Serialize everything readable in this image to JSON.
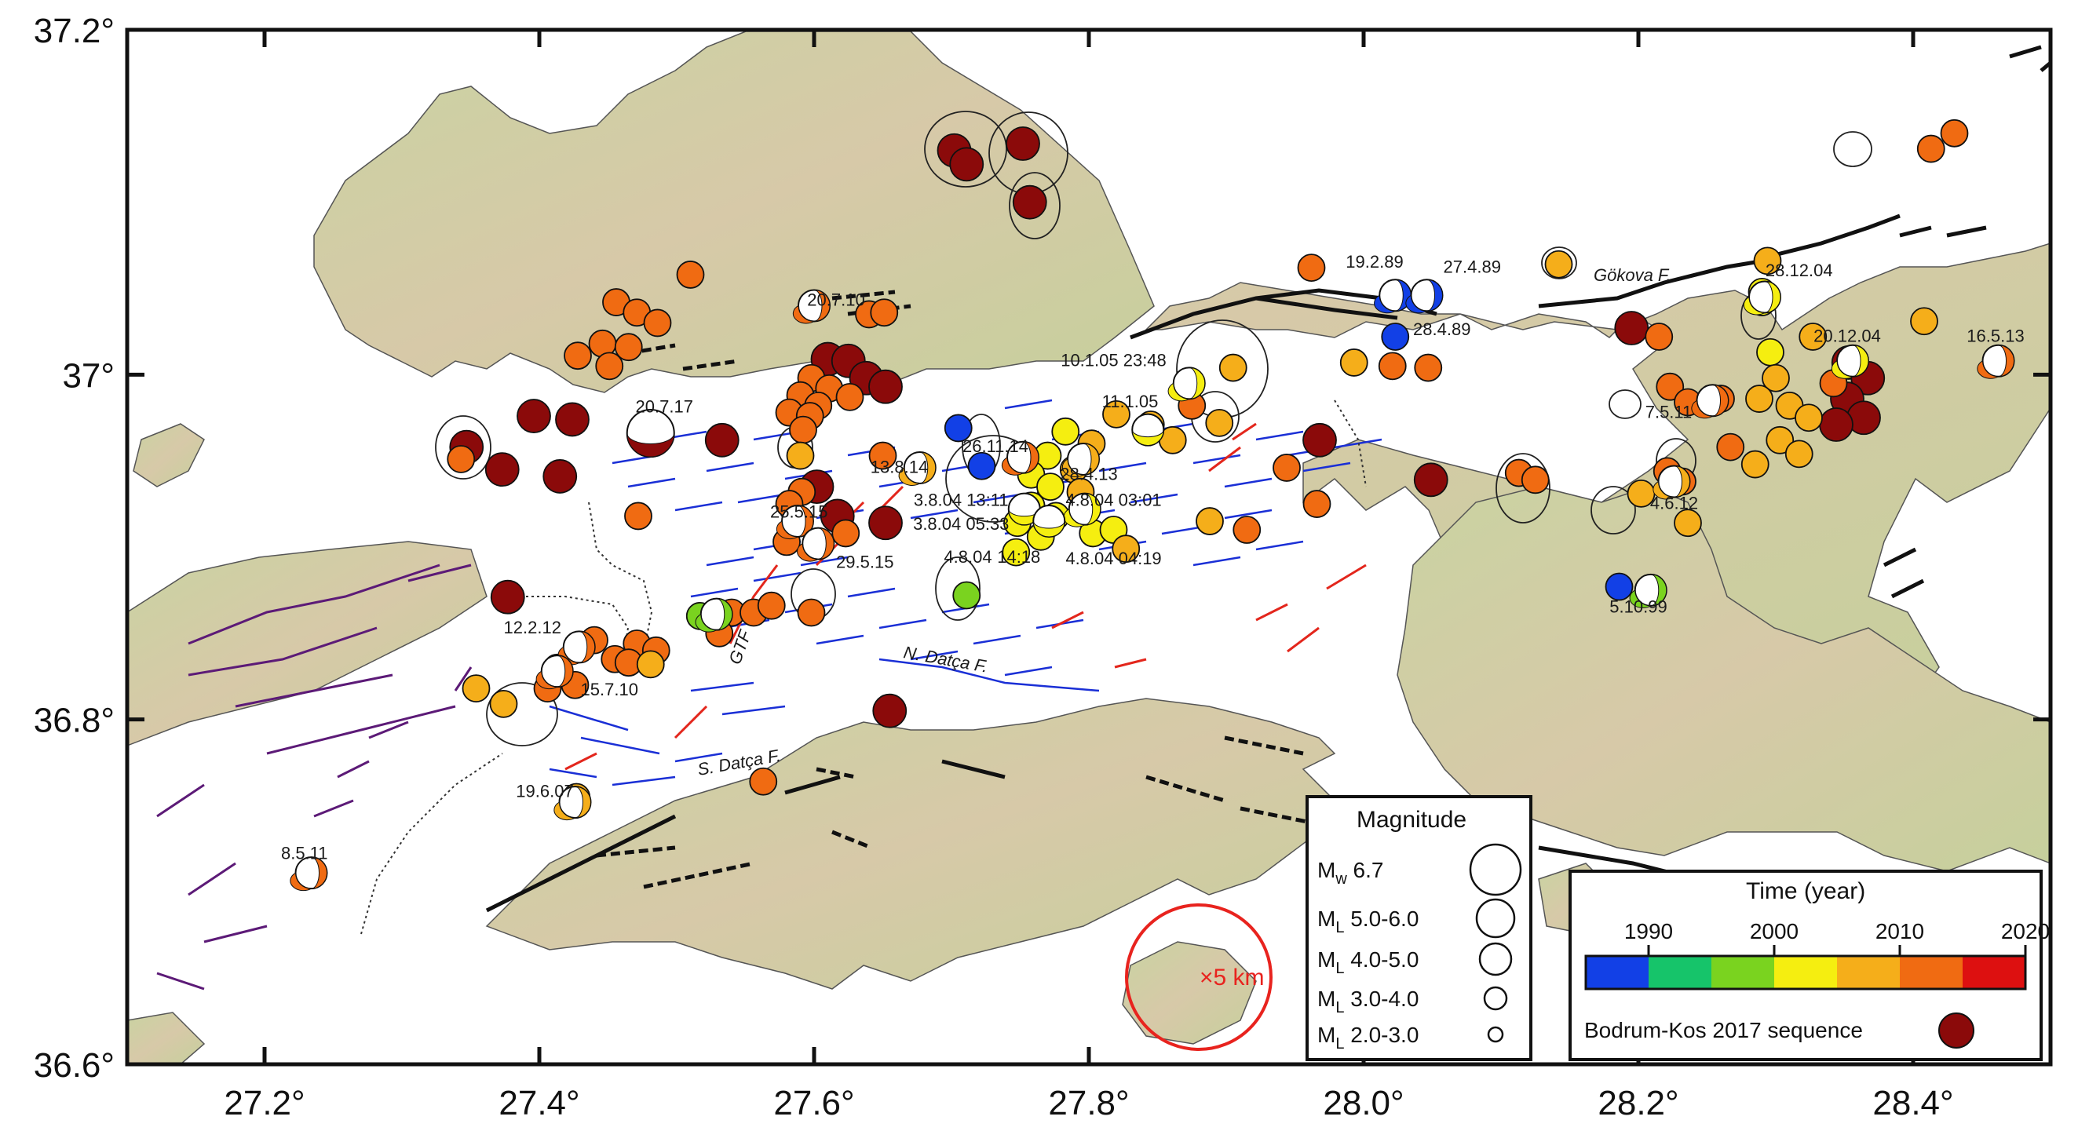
{
  "axes": {
    "x_ticks": [
      "27.2°",
      "27.4°",
      "27.6°",
      "27.8°",
      "28.0°",
      "28.2°",
      "28.4°"
    ],
    "x_values": [
      27.2,
      27.4,
      27.6,
      27.8,
      28.0,
      28.2,
      28.4
    ],
    "y_ticks": [
      "37.2°",
      "37°",
      "36.8°",
      "36.6°"
    ],
    "y_values": [
      37.2,
      37.0,
      36.8,
      36.6
    ],
    "lon_range": [
      27.1,
      28.5
    ],
    "lat_range": [
      36.6,
      37.2
    ]
  },
  "fault_labels": {
    "gokova": "Gökova F.",
    "n_datca": "N. Datça F.",
    "s_datca": "S. Datça F.",
    "gtf": "GTF"
  },
  "event_labels": [
    {
      "text": "20.7.10",
      "lon": 27.616,
      "lat": 37.04
    },
    {
      "text": "19.2.89",
      "lon": 28.008,
      "lat": 37.062
    },
    {
      "text": "27.4.89",
      "lon": 28.079,
      "lat": 37.059
    },
    {
      "text": "28.4.89",
      "lon": 28.057,
      "lat": 37.023
    },
    {
      "text": "28.12.04",
      "lon": 28.317,
      "lat": 37.057
    },
    {
      "text": "20.12.04",
      "lon": 28.352,
      "lat": 37.019
    },
    {
      "text": "16.5.13",
      "lon": 28.46,
      "lat": 37.019
    },
    {
      "text": "10.1.05 23:48",
      "lon": 27.818,
      "lat": 37.005
    },
    {
      "text": "11.1.05",
      "lon": 27.83,
      "lat": 36.981
    },
    {
      "text": "20.7.17",
      "lon": 27.491,
      "lat": 36.978
    },
    {
      "text": "26.11.14",
      "lon": 27.732,
      "lat": 36.955
    },
    {
      "text": "13.8.14",
      "lon": 27.662,
      "lat": 36.943
    },
    {
      "text": "28.4.13",
      "lon": 27.8,
      "lat": 36.939
    },
    {
      "text": "7.5.11",
      "lon": 28.222,
      "lat": 36.975
    },
    {
      "text": "3.8.04 13:11",
      "lon": 27.707,
      "lat": 36.924
    },
    {
      "text": "4.8.04 03:01",
      "lon": 27.818,
      "lat": 36.924
    },
    {
      "text": "25.5.15",
      "lon": 27.589,
      "lat": 36.917
    },
    {
      "text": "3.8.04 05:33",
      "lon": 27.707,
      "lat": 36.91
    },
    {
      "text": "4.6.12",
      "lon": 28.226,
      "lat": 36.922
    },
    {
      "text": "29.5.15",
      "lon": 27.637,
      "lat": 36.888
    },
    {
      "text": "4.8.04",
      "lon": 27.712,
      "lat": 36.891
    },
    {
      "text": "14:18",
      "lon": 27.749,
      "lat": 36.891
    },
    {
      "text": "4.8.04 04:19",
      "lon": 27.818,
      "lat": 36.89
    },
    {
      "text": "5.10.99",
      "lon": 28.2,
      "lat": 36.862
    },
    {
      "text": "12.2.12",
      "lon": 27.395,
      "lat": 36.85
    },
    {
      "text": "15.7.10",
      "lon": 27.451,
      "lat": 36.814
    },
    {
      "text": "19.6.07",
      "lon": 27.404,
      "lat": 36.755
    },
    {
      "text": "8.5.11",
      "lon": 27.229,
      "lat": 36.719
    }
  ],
  "scale_marker": {
    "label": "×5 km",
    "color": "#e8231e"
  },
  "magnitude_legend": {
    "title": "Magnitude",
    "items": [
      {
        "prefix": "M",
        "sub": "w",
        "label": "6.7"
      },
      {
        "prefix": "M",
        "sub": "L",
        "label": "5.0-6.0"
      },
      {
        "prefix": "M",
        "sub": "L",
        "label": "4.0-5.0"
      },
      {
        "prefix": "M",
        "sub": "L",
        "label": "3.0-4.0"
      },
      {
        "prefix": "M",
        "sub": "L",
        "label": "2.0-3.0"
      }
    ]
  },
  "time_legend": {
    "title": "Time (year)",
    "ticks": [
      "1990",
      "2000",
      "2010",
      "2020"
    ],
    "colors": [
      "#1240e6",
      "#16c46a",
      "#7ad31f",
      "#f5ee10",
      "#f5ae1a",
      "#f06b12",
      "#dd1010"
    ],
    "sequence_label": "Bodrum-Kos 2017 sequence",
    "sequence_color": "#8b0a0a"
  },
  "colors": {
    "land": "#cfd6a4",
    "sea": "#ffffff",
    "fault_onshore": "#111111",
    "fault_offshore_blue": "#1a2fd6",
    "fault_offshore_red": "#e3261c",
    "fault_purple": "#5c1a77"
  },
  "events": [
    {
      "lon": 27.702,
      "lat": 37.13,
      "c": 6
    },
    {
      "lon": 27.711,
      "lat": 37.122,
      "c": 6
    },
    {
      "lon": 27.752,
      "lat": 37.134,
      "c": 6
    },
    {
      "lon": 27.757,
      "lat": 37.1,
      "c": 6
    },
    {
      "lon": 28.43,
      "lat": 37.14,
      "c": 5
    },
    {
      "lon": 28.413,
      "lat": 37.131,
      "c": 5
    },
    {
      "lon": 27.51,
      "lat": 37.058,
      "c": 5
    },
    {
      "lon": 27.962,
      "lat": 37.062,
      "c": 5
    },
    {
      "lon": 28.142,
      "lat": 37.064,
      "c": 4
    },
    {
      "lon": 28.294,
      "lat": 37.066,
      "c": 4
    },
    {
      "lon": 28.29,
      "lat": 37.048,
      "c": 3
    },
    {
      "lon": 28.29,
      "lat": 37.042,
      "c": 3
    },
    {
      "lon": 27.456,
      "lat": 37.042,
      "c": 5
    },
    {
      "lon": 27.471,
      "lat": 37.036,
      "c": 5
    },
    {
      "lon": 27.486,
      "lat": 37.03,
      "c": 5
    },
    {
      "lon": 27.446,
      "lat": 37.018,
      "c": 5
    },
    {
      "lon": 27.465,
      "lat": 37.016,
      "c": 5
    },
    {
      "lon": 27.428,
      "lat": 37.011,
      "c": 5
    },
    {
      "lon": 27.451,
      "lat": 37.005,
      "c": 5
    },
    {
      "lon": 27.64,
      "lat": 37.035,
      "c": 5
    },
    {
      "lon": 27.651,
      "lat": 37.036,
      "c": 5
    },
    {
      "lon": 28.195,
      "lat": 37.027,
      "c": 6
    },
    {
      "lon": 28.215,
      "lat": 37.022,
      "c": 5
    },
    {
      "lon": 28.408,
      "lat": 37.031,
      "c": 4
    },
    {
      "lon": 27.61,
      "lat": 37.009,
      "c": 6
    },
    {
      "lon": 27.625,
      "lat": 37.008,
      "c": 6
    },
    {
      "lon": 27.638,
      "lat": 36.998,
      "c": 6
    },
    {
      "lon": 27.652,
      "lat": 36.993,
      "c": 6
    },
    {
      "lon": 27.598,
      "lat": 36.998,
      "c": 5
    },
    {
      "lon": 27.611,
      "lat": 36.992,
      "c": 5
    },
    {
      "lon": 27.626,
      "lat": 36.987,
      "c": 5
    },
    {
      "lon": 27.59,
      "lat": 36.988,
      "c": 5
    },
    {
      "lon": 27.603,
      "lat": 36.982,
      "c": 5
    },
    {
      "lon": 27.582,
      "lat": 36.978,
      "c": 5
    },
    {
      "lon": 27.597,
      "lat": 36.976,
      "c": 5
    },
    {
      "lon": 27.592,
      "lat": 36.968,
      "c": 5
    },
    {
      "lon": 28.353,
      "lat": 37.007,
      "c": 6
    },
    {
      "lon": 28.367,
      "lat": 36.998,
      "c": 6
    },
    {
      "lon": 28.352,
      "lat": 36.986,
      "c": 6
    },
    {
      "lon": 28.364,
      "lat": 36.975,
      "c": 6
    },
    {
      "lon": 28.344,
      "lat": 36.971,
      "c": 6
    },
    {
      "lon": 28.342,
      "lat": 36.995,
      "c": 5
    },
    {
      "lon": 28.327,
      "lat": 37.022,
      "c": 4
    },
    {
      "lon": 28.296,
      "lat": 37.013,
      "c": 3
    },
    {
      "lon": 28.3,
      "lat": 36.998,
      "c": 4
    },
    {
      "lon": 28.288,
      "lat": 36.986,
      "c": 4
    },
    {
      "lon": 28.31,
      "lat": 36.982,
      "c": 4
    },
    {
      "lon": 28.324,
      "lat": 36.975,
      "c": 4
    },
    {
      "lon": 28.303,
      "lat": 36.962,
      "c": 4
    },
    {
      "lon": 28.317,
      "lat": 36.954,
      "c": 4
    },
    {
      "lon": 28.285,
      "lat": 36.948,
      "c": 4
    },
    {
      "lon": 28.267,
      "lat": 36.958,
      "c": 5
    },
    {
      "lon": 28.223,
      "lat": 36.993,
      "c": 5
    },
    {
      "lon": 28.236,
      "lat": 36.984,
      "c": 5
    },
    {
      "lon": 28.26,
      "lat": 36.986,
      "c": 5
    },
    {
      "lon": 28.236,
      "lat": 36.914,
      "c": 4
    },
    {
      "lon": 28.202,
      "lat": 36.931,
      "c": 4
    },
    {
      "lon": 28.221,
      "lat": 36.944,
      "c": 5
    },
    {
      "lon": 28.232,
      "lat": 36.938,
      "c": 5
    },
    {
      "lon": 27.993,
      "lat": 37.007,
      "c": 4
    },
    {
      "lon": 28.021,
      "lat": 37.005,
      "c": 5
    },
    {
      "lon": 28.047,
      "lat": 37.004,
      "c": 5
    },
    {
      "lon": 27.905,
      "lat": 37.004,
      "c": 4
    },
    {
      "lon": 27.895,
      "lat": 36.972,
      "c": 4
    },
    {
      "lon": 27.875,
      "lat": 36.982,
      "c": 5
    },
    {
      "lon": 27.944,
      "lat": 36.946,
      "c": 5
    },
    {
      "lon": 27.968,
      "lat": 36.962,
      "c": 6
    },
    {
      "lon": 27.966,
      "lat": 36.925,
      "c": 5
    },
    {
      "lon": 27.915,
      "lat": 36.91,
      "c": 5
    },
    {
      "lon": 27.888,
      "lat": 36.915,
      "c": 4
    },
    {
      "lon": 28.049,
      "lat": 36.939,
      "c": 6
    },
    {
      "lon": 28.113,
      "lat": 36.943,
      "c": 5
    },
    {
      "lon": 28.125,
      "lat": 36.939,
      "c": 5
    },
    {
      "lon": 27.82,
      "lat": 36.977,
      "c": 4
    },
    {
      "lon": 27.845,
      "lat": 36.971,
      "c": 4
    },
    {
      "lon": 27.861,
      "lat": 36.962,
      "c": 4
    },
    {
      "lon": 27.783,
      "lat": 36.967,
      "c": 3
    },
    {
      "lon": 27.802,
      "lat": 36.96,
      "c": 4
    },
    {
      "lon": 27.77,
      "lat": 36.953,
      "c": 3
    },
    {
      "lon": 27.789,
      "lat": 36.945,
      "c": 4
    },
    {
      "lon": 27.758,
      "lat": 36.942,
      "c": 3
    },
    {
      "lon": 27.772,
      "lat": 36.935,
      "c": 3
    },
    {
      "lon": 27.794,
      "lat": 36.932,
      "c": 4
    },
    {
      "lon": 27.758,
      "lat": 36.924,
      "c": 3
    },
    {
      "lon": 27.776,
      "lat": 36.918,
      "c": 3
    },
    {
      "lon": 27.748,
      "lat": 36.914,
      "c": 3
    },
    {
      "lon": 27.803,
      "lat": 36.908,
      "c": 3
    },
    {
      "lon": 27.765,
      "lat": 36.906,
      "c": 3
    },
    {
      "lon": 27.818,
      "lat": 36.91,
      "c": 3
    },
    {
      "lon": 27.747,
      "lat": 36.897,
      "c": 3
    },
    {
      "lon": 27.827,
      "lat": 36.899,
      "c": 4
    },
    {
      "lon": 27.705,
      "lat": 36.969,
      "c": 0
    },
    {
      "lon": 27.722,
      "lat": 36.947,
      "c": 0
    },
    {
      "lon": 28.023,
      "lat": 37.022,
      "c": 0
    },
    {
      "lon": 28.186,
      "lat": 36.877,
      "c": 0
    },
    {
      "lon": 27.711,
      "lat": 36.872,
      "c": 2
    },
    {
      "lon": 27.517,
      "lat": 36.86,
      "c": 2
    },
    {
      "lon": 27.528,
      "lat": 36.86,
      "c": 5
    },
    {
      "lon": 27.54,
      "lat": 36.862,
      "c": 5
    },
    {
      "lon": 27.556,
      "lat": 36.862,
      "c": 5
    },
    {
      "lon": 27.569,
      "lat": 36.866,
      "c": 5
    },
    {
      "lon": 27.598,
      "lat": 36.862,
      "c": 5
    },
    {
      "lon": 27.531,
      "lat": 36.85,
      "c": 5
    },
    {
      "lon": 27.602,
      "lat": 36.935,
      "c": 6
    },
    {
      "lon": 27.591,
      "lat": 36.932,
      "c": 5
    },
    {
      "lon": 27.582,
      "lat": 36.925,
      "c": 5
    },
    {
      "lon": 27.617,
      "lat": 36.918,
      "c": 6
    },
    {
      "lon": 27.652,
      "lat": 36.914,
      "c": 6
    },
    {
      "lon": 27.58,
      "lat": 36.903,
      "c": 5
    },
    {
      "lon": 27.623,
      "lat": 36.908,
      "c": 5
    },
    {
      "lon": 27.65,
      "lat": 36.953,
      "c": 5
    },
    {
      "lon": 27.59,
      "lat": 36.953,
      "c": 4
    },
    {
      "lon": 27.472,
      "lat": 36.918,
      "c": 5
    },
    {
      "lon": 27.347,
      "lat": 36.958,
      "c": 6
    },
    {
      "lon": 27.373,
      "lat": 36.945,
      "c": 6
    },
    {
      "lon": 27.396,
      "lat": 36.976,
      "c": 6
    },
    {
      "lon": 27.415,
      "lat": 36.941,
      "c": 6
    },
    {
      "lon": 27.533,
      "lat": 36.962,
      "c": 6
    },
    {
      "lon": 27.377,
      "lat": 36.871,
      "c": 6
    },
    {
      "lon": 27.424,
      "lat": 36.974,
      "c": 6
    },
    {
      "lon": 27.343,
      "lat": 36.951,
      "c": 5
    },
    {
      "lon": 27.471,
      "lat": 36.844,
      "c": 5
    },
    {
      "lon": 27.44,
      "lat": 36.846,
      "c": 5
    },
    {
      "lon": 27.455,
      "lat": 36.835,
      "c": 5
    },
    {
      "lon": 27.465,
      "lat": 36.833,
      "c": 5
    },
    {
      "lon": 27.485,
      "lat": 36.84,
      "c": 5
    },
    {
      "lon": 27.413,
      "lat": 36.83,
      "c": 5
    },
    {
      "lon": 27.406,
      "lat": 36.818,
      "c": 5
    },
    {
      "lon": 27.426,
      "lat": 36.82,
      "c": 5
    },
    {
      "lon": 27.481,
      "lat": 36.832,
      "c": 4
    },
    {
      "lon": 27.354,
      "lat": 36.818,
      "c": 4
    },
    {
      "lon": 27.374,
      "lat": 36.809,
      "c": 4
    },
    {
      "lon": 27.655,
      "lat": 36.805,
      "c": 6
    },
    {
      "lon": 27.563,
      "lat": 36.764,
      "c": 5
    },
    {
      "lon": 27.427,
      "lat": 36.755,
      "c": 4
    }
  ],
  "mechanisms": [
    {
      "lon": 27.234,
      "lat": 36.711,
      "a": 0,
      "c": 5
    },
    {
      "lon": 27.426,
      "lat": 36.752,
      "a": 0,
      "c": 4
    },
    {
      "lon": 27.429,
      "lat": 36.842,
      "a": 0,
      "c": 5
    },
    {
      "lon": 27.413,
      "lat": 36.828,
      "a": 0,
      "c": 5
    },
    {
      "lon": 27.481,
      "lat": 36.966,
      "a": 1,
      "c": 6
    },
    {
      "lon": 27.6,
      "lat": 37.04,
      "a": 0,
      "c": 5
    },
    {
      "lon": 28.023,
      "lat": 37.046,
      "a": 0,
      "c": 0
    },
    {
      "lon": 28.046,
      "lat": 37.046,
      "a": 0,
      "c": 0
    },
    {
      "lon": 28.292,
      "lat": 37.045,
      "a": 0,
      "c": 3
    },
    {
      "lon": 28.356,
      "lat": 37.008,
      "a": 0,
      "c": 3
    },
    {
      "lon": 28.462,
      "lat": 37.008,
      "a": 0,
      "c": 5
    },
    {
      "lon": 27.873,
      "lat": 36.995,
      "a": 0,
      "c": 3
    },
    {
      "lon": 27.843,
      "lat": 36.968,
      "a": 1,
      "c": 3
    },
    {
      "lon": 27.752,
      "lat": 36.952,
      "a": 0,
      "c": 5
    },
    {
      "lon": 27.677,
      "lat": 36.946,
      "a": 0,
      "c": 4
    },
    {
      "lon": 27.796,
      "lat": 36.951,
      "a": 0,
      "c": 4
    },
    {
      "lon": 28.254,
      "lat": 36.985,
      "a": 0,
      "c": 5
    },
    {
      "lon": 27.753,
      "lat": 36.922,
      "a": 1,
      "c": 3
    },
    {
      "lon": 27.797,
      "lat": 36.922,
      "a": 0,
      "c": 3
    },
    {
      "lon": 27.588,
      "lat": 36.915,
      "a": 0,
      "c": 5
    },
    {
      "lon": 27.771,
      "lat": 36.915,
      "a": 1,
      "c": 3
    },
    {
      "lon": 28.226,
      "lat": 36.938,
      "a": 0,
      "c": 4
    },
    {
      "lon": 27.603,
      "lat": 36.902,
      "a": 0,
      "c": 5
    },
    {
      "lon": 28.209,
      "lat": 36.875,
      "a": 0,
      "c": 2
    },
    {
      "lon": 27.529,
      "lat": 36.861,
      "a": 0,
      "c": 2
    }
  ],
  "labels_time": {
    "title": "Time (year)"
  }
}
